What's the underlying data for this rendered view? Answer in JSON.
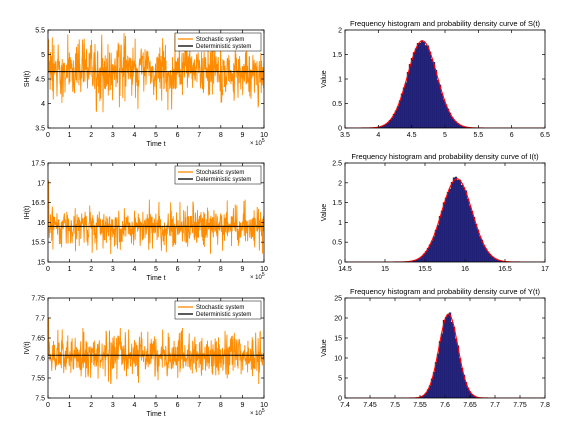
{
  "chart_data": [
    {
      "type": "line",
      "title": "",
      "xlabel": "Time t",
      "ylabel": "SH(t)",
      "x_exponent": "× 10^5",
      "xlim": [
        0,
        10
      ],
      "ylim": [
        3.5,
        5.5
      ],
      "xticks": [
        0,
        1,
        2,
        3,
        4,
        5,
        6,
        7,
        8,
        9,
        10
      ],
      "yticks": [
        3.5,
        4,
        4.5,
        5,
        5.5
      ],
      "legend": {
        "placement": "top-right",
        "entries": [
          "Stochastic system",
          "Deterministic system"
        ]
      },
      "series": [
        {
          "name": "Stochastic system",
          "color": "#ff8c00",
          "start": 5.3,
          "mean": 4.65,
          "spread_low": 3.8,
          "spread_high": 5.45,
          "typical_low": 4.25,
          "typical_high": 5.05
        },
        {
          "name": "Deterministic system",
          "color": "#000000",
          "value": 4.65
        }
      ]
    },
    {
      "type": "bar",
      "title": "Frequency histogram and probability density curve of S(t)",
      "xlabel": "",
      "ylabel": "Value",
      "xlim": [
        3.5,
        6.5
      ],
      "ylim": [
        0,
        2
      ],
      "xticks": [
        3.5,
        4,
        4.5,
        5,
        5.5,
        6,
        6.5
      ],
      "yticks": [
        0,
        0.5,
        1,
        1.5,
        2
      ],
      "bar_color": "#2b2b9e",
      "curve_color": "#ff0000",
      "density": {
        "mean": 4.66,
        "sd": 0.22,
        "peak": 1.78
      }
    },
    {
      "type": "line",
      "title": "",
      "xlabel": "Time t",
      "ylabel": "IH(t)",
      "x_exponent": "× 10^5",
      "xlim": [
        0,
        10
      ],
      "ylim": [
        15,
        17.5
      ],
      "xticks": [
        0,
        1,
        2,
        3,
        4,
        5,
        6,
        7,
        8,
        9,
        10
      ],
      "yticks": [
        15,
        15.5,
        16,
        16.5,
        17,
        17.5
      ],
      "legend": {
        "placement": "top-right",
        "entries": [
          "Stochastic system",
          "Deterministic system"
        ]
      },
      "series": [
        {
          "name": "Stochastic system",
          "color": "#ff8c00",
          "start": 17.05,
          "mean": 15.9,
          "spread_low": 15.2,
          "spread_high": 16.6,
          "typical_low": 15.55,
          "typical_high": 16.25
        },
        {
          "name": "Deterministic system",
          "color": "#000000",
          "value": 15.9
        }
      ]
    },
    {
      "type": "bar",
      "title": "Frequency histogram and probability density curve of I(t)",
      "xlabel": "",
      "ylabel": "Value",
      "xlim": [
        14.5,
        17
      ],
      "ylim": [
        0,
        2.5
      ],
      "xticks": [
        14.5,
        15,
        15.5,
        16,
        16.5,
        17
      ],
      "yticks": [
        0,
        0.5,
        1,
        1.5,
        2,
        2.5
      ],
      "bar_color": "#2b2b9e",
      "curve_color": "#ff0000",
      "density": {
        "mean": 15.9,
        "sd": 0.19,
        "peak": 2.1
      }
    },
    {
      "type": "line",
      "title": "",
      "xlabel": "Time t",
      "ylabel": "IV(t)",
      "x_exponent": "× 10^5",
      "xlim": [
        0,
        10
      ],
      "ylim": [
        7.5,
        7.75
      ],
      "xticks": [
        0,
        1,
        2,
        3,
        4,
        5,
        6,
        7,
        8,
        9,
        10
      ],
      "yticks": [
        7.5,
        7.55,
        7.6,
        7.65,
        7.7,
        7.75
      ],
      "legend": {
        "placement": "top-right",
        "entries": [
          "Stochastic system",
          "Deterministic system"
        ]
      },
      "series": [
        {
          "name": "Stochastic system",
          "color": "#ff8c00",
          "start": 7.7,
          "mean": 7.607,
          "spread_low": 7.535,
          "spread_high": 7.675,
          "typical_low": 7.57,
          "typical_high": 7.645
        },
        {
          "name": "Deterministic system",
          "color": "#000000",
          "value": 7.607
        }
      ]
    },
    {
      "type": "bar",
      "title": "Frequency histogram and probability density curve of Y(t)",
      "xlabel": "",
      "ylabel": "Value",
      "xlim": [
        7.4,
        7.8
      ],
      "ylim": [
        0,
        25
      ],
      "xticks": [
        7.4,
        7.45,
        7.5,
        7.55,
        7.6,
        7.65,
        7.7,
        7.75,
        7.8
      ],
      "yticks": [
        0,
        5,
        10,
        15,
        20,
        25
      ],
      "bar_color": "#2b2b9e",
      "curve_color": "#ff0000",
      "density": {
        "mean": 7.607,
        "sd": 0.019,
        "peak": 21
      }
    }
  ]
}
